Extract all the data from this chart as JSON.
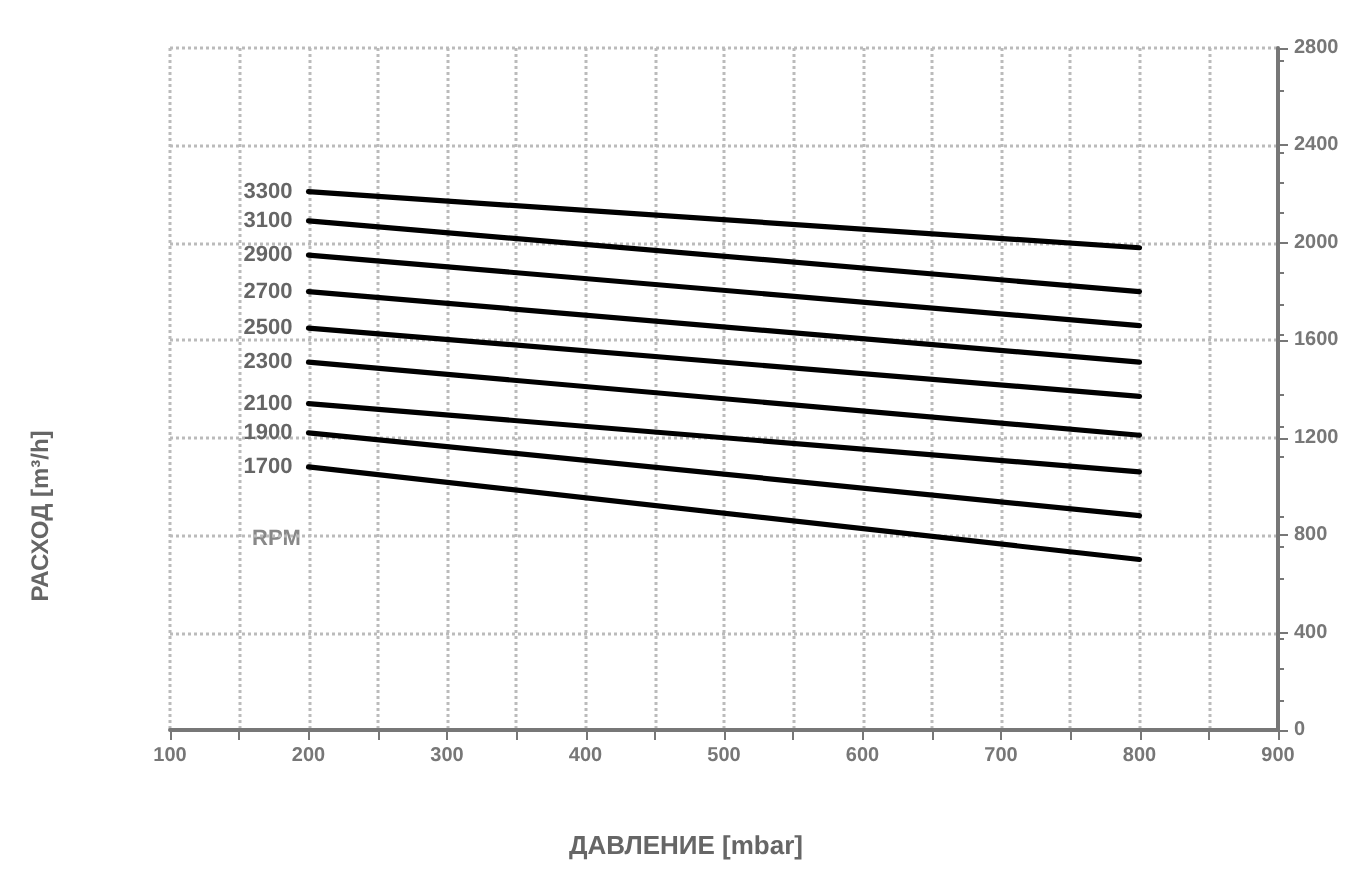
{
  "chart_data": {
    "type": "line",
    "xlabel": "ДАВЛЕНИЕ [mbar]",
    "ylabel": "РАСХОД [m³/h]",
    "annotations": [
      "RPM"
    ],
    "x": [
      200,
      800
    ],
    "series": [
      {
        "name": "3300",
        "color": "#000000",
        "values": [
          2210,
          1980
        ]
      },
      {
        "name": "3100",
        "color": "#000000",
        "values": [
          2090,
          1800
        ]
      },
      {
        "name": "2900",
        "color": "#000000",
        "values": [
          1950,
          1660
        ]
      },
      {
        "name": "2700",
        "color": "#000000",
        "values": [
          1800,
          1510
        ]
      },
      {
        "name": "2500",
        "color": "#000000",
        "values": [
          1650,
          1370
        ]
      },
      {
        "name": "2300",
        "color": "#000000",
        "values": [
          1510,
          1210
        ]
      },
      {
        "name": "2100",
        "color": "#000000",
        "values": [
          1340,
          1060
        ]
      },
      {
        "name": "1900",
        "color": "#000000",
        "values": [
          1220,
          880
        ]
      },
      {
        "name": "1700",
        "color": "#000000",
        "values": [
          1080,
          700
        ]
      }
    ],
    "xlim": [
      100,
      900
    ],
    "xticks": [
      100,
      {
        "value": 150,
        "label": null
      },
      200,
      {
        "value": 250,
        "label": null
      },
      300,
      {
        "value": 350,
        "label": null
      },
      400,
      {
        "value": 450,
        "label": null
      },
      500,
      {
        "value": 550,
        "label": null
      },
      600,
      {
        "value": 650,
        "label": null
      },
      700,
      {
        "value": 750,
        "label": null
      },
      800,
      {
        "value": 850,
        "label": null
      },
      900
    ],
    "ylim": [
      0,
      2800
    ],
    "yticks": [
      0,
      400,
      800,
      1200,
      1600,
      2000,
      2400,
      2800
    ],
    "grid": true,
    "legend": false,
    "marker": "none",
    "line_style": "solid"
  }
}
